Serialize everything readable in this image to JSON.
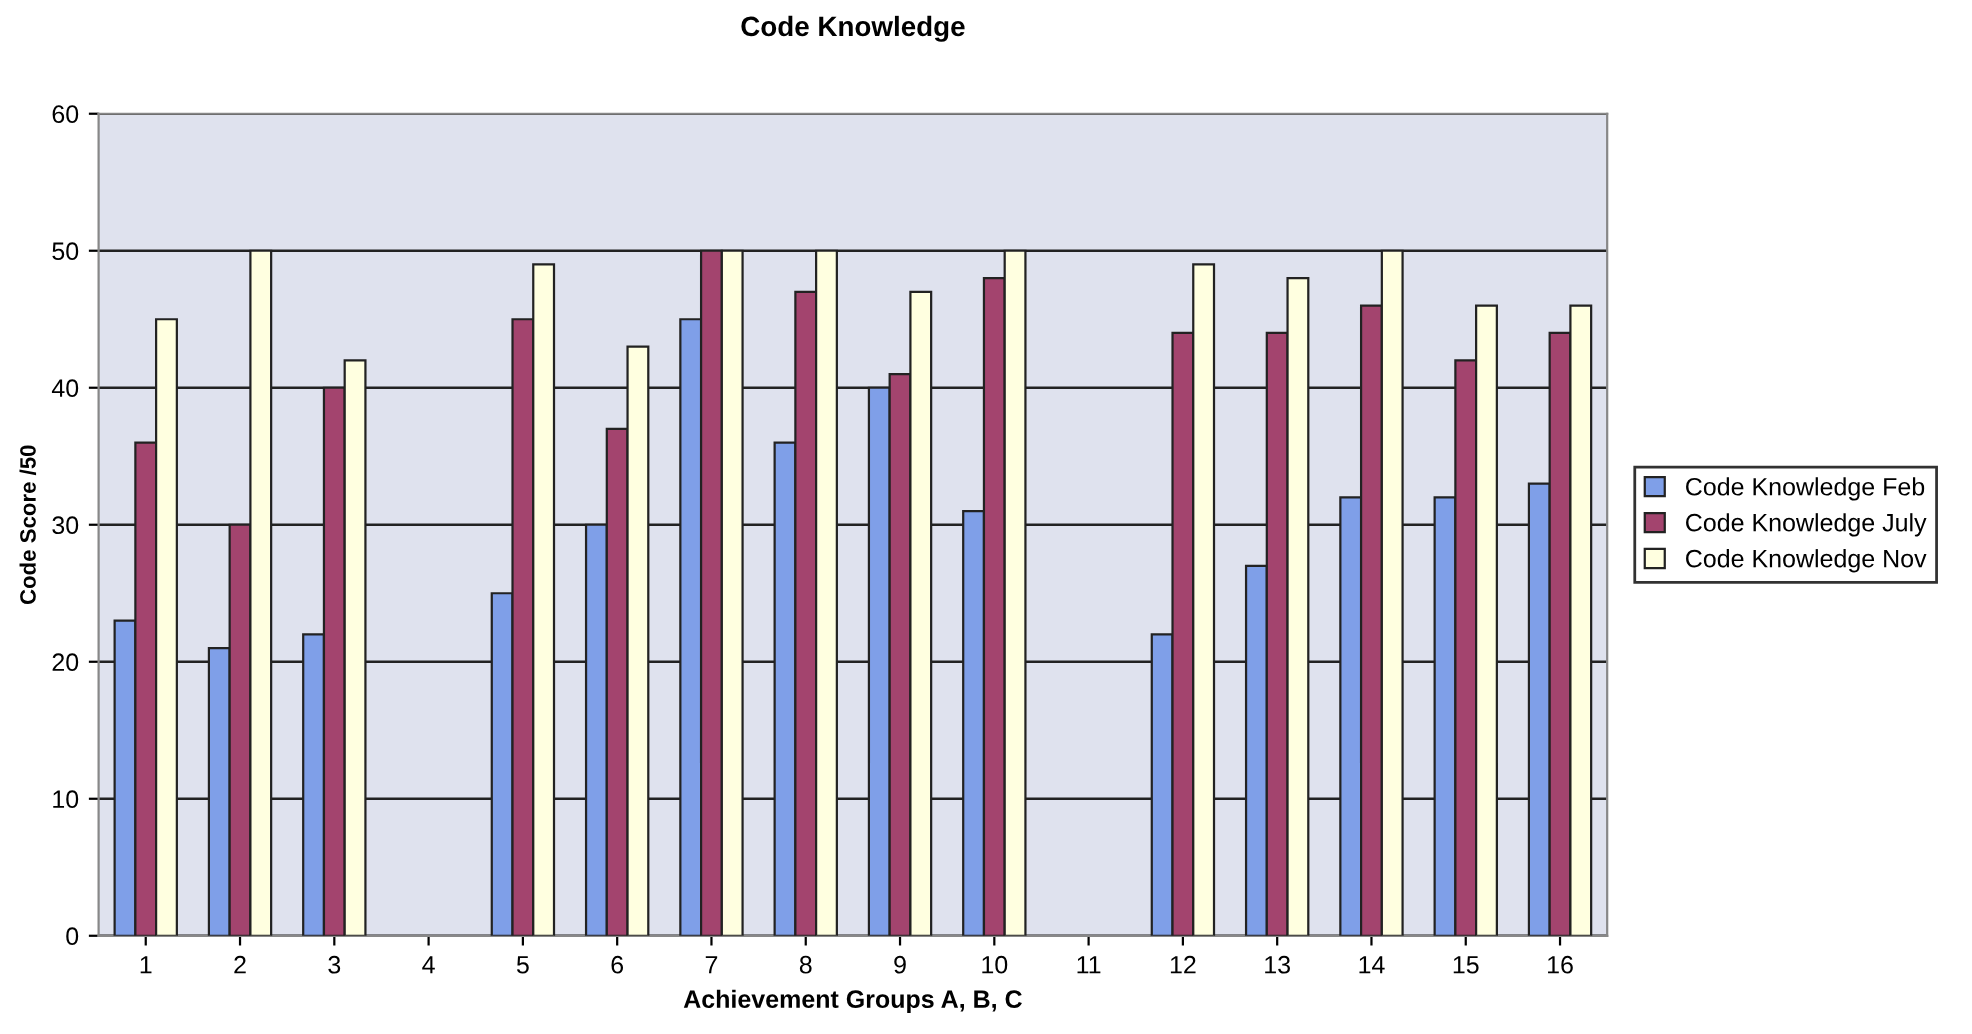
{
  "chart_data": {
    "type": "bar",
    "title": "Code Knowledge",
    "xlabel": "Achievement Groups A, B, C",
    "ylabel": "Code Score /50",
    "categories": [
      "1",
      "2",
      "3",
      "4",
      "5",
      "6",
      "7",
      "8",
      "9",
      "10",
      "11",
      "12",
      "13",
      "14",
      "15",
      "16"
    ],
    "series": [
      {
        "name": "Code Knowledge Feb",
        "color": "#7f9fe8",
        "values": [
          23,
          21,
          22,
          null,
          25,
          30,
          45,
          36,
          40,
          31,
          null,
          22,
          27,
          32,
          32,
          33
        ]
      },
      {
        "name": "Code Knowledge July",
        "color": "#a3446e",
        "values": [
          36,
          30,
          40,
          null,
          45,
          37,
          50,
          47,
          41,
          48,
          null,
          44,
          44,
          46,
          42,
          44
        ]
      },
      {
        "name": "Code Knowledge Nov",
        "color": "#ffffe0",
        "values": [
          45,
          50,
          42,
          null,
          49,
          43,
          50,
          50,
          47,
          50,
          null,
          49,
          48,
          50,
          46,
          46
        ]
      }
    ],
    "ylim": [
      0,
      60
    ],
    "yticks": [
      0,
      10,
      20,
      30,
      40,
      50,
      60
    ],
    "grid": "y",
    "legend": "right"
  }
}
